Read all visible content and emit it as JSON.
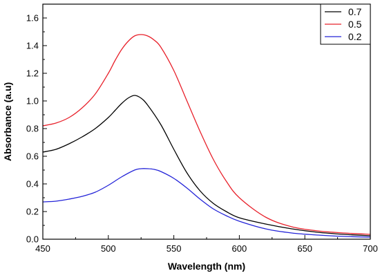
{
  "chart_data": {
    "type": "line",
    "title": "",
    "xlabel": "Wavelength (nm)",
    "ylabel": "Absorbance (a.u)",
    "xlim": [
      450,
      700
    ],
    "ylim": [
      0,
      1.7
    ],
    "xticks": [
      450,
      500,
      550,
      600,
      650,
      700
    ],
    "xtick_labels": [
      "450",
      "500",
      "550",
      "600",
      "650",
      "700"
    ],
    "yticks": [
      0,
      0.2,
      0.4,
      0.6,
      0.8,
      1.0,
      1.2,
      1.4,
      1.6
    ],
    "ytick_labels": [
      "0.0",
      "0.2",
      "0.4",
      "0.6",
      "0.8",
      "1.0",
      "1.2",
      "1.4",
      "1.6"
    ],
    "grid": false,
    "legend_position": "top-right",
    "series": [
      {
        "name": "0.7",
        "color": "#000000",
        "x": [
          450,
          460,
          470,
          480,
          490,
          500,
          505,
          510,
          515,
          520,
          525,
          530,
          540,
          550,
          560,
          570,
          580,
          590,
          600,
          620,
          640,
          660,
          680,
          700
        ],
        "y": [
          0.63,
          0.65,
          0.69,
          0.74,
          0.8,
          0.88,
          0.93,
          0.98,
          1.02,
          1.04,
          1.02,
          0.97,
          0.83,
          0.65,
          0.48,
          0.35,
          0.26,
          0.2,
          0.155,
          0.11,
          0.075,
          0.05,
          0.035,
          0.025
        ]
      },
      {
        "name": "0.5",
        "color": "#e8202a",
        "x": [
          450,
          460,
          470,
          480,
          490,
          500,
          505,
          510,
          515,
          520,
          525,
          530,
          535,
          540,
          550,
          560,
          570,
          580,
          590,
          600,
          620,
          640,
          660,
          680,
          700
        ],
        "y": [
          0.82,
          0.84,
          0.88,
          0.95,
          1.05,
          1.2,
          1.29,
          1.37,
          1.43,
          1.47,
          1.48,
          1.47,
          1.44,
          1.39,
          1.22,
          1.0,
          0.78,
          0.58,
          0.42,
          0.3,
          0.16,
          0.09,
          0.06,
          0.045,
          0.035
        ]
      },
      {
        "name": "0.2",
        "color": "#2323d8",
        "x": [
          450,
          460,
          470,
          480,
          490,
          500,
          510,
          520,
          525,
          530,
          535,
          540,
          550,
          560,
          570,
          580,
          590,
          600,
          620,
          640,
          660,
          680,
          700
        ],
        "y": [
          0.27,
          0.275,
          0.29,
          0.31,
          0.34,
          0.39,
          0.45,
          0.5,
          0.51,
          0.51,
          0.505,
          0.49,
          0.44,
          0.37,
          0.29,
          0.22,
          0.17,
          0.13,
          0.075,
          0.045,
          0.03,
          0.02,
          0.015
        ]
      }
    ]
  }
}
